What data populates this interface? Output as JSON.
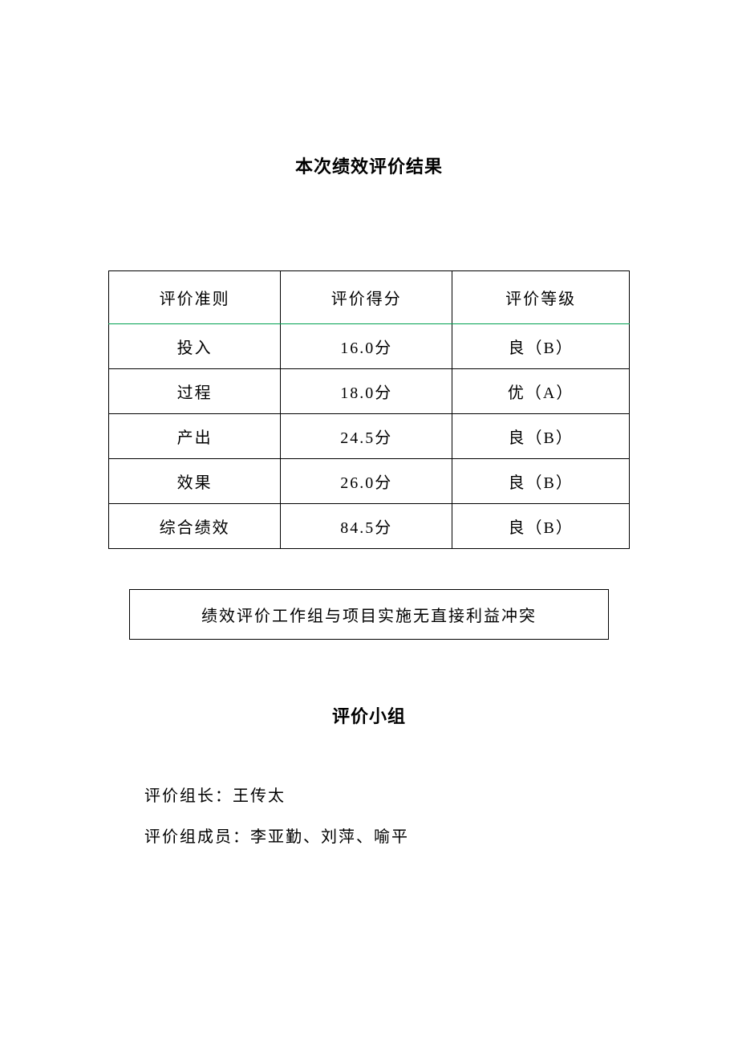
{
  "title": "本次绩效评价结果",
  "table": {
    "headers": {
      "criterion": "评价准则",
      "score": "评价得分",
      "grade": "评价等级"
    },
    "rows": [
      {
        "criterion": "投入",
        "score": "16.0分",
        "grade": "良（B）"
      },
      {
        "criterion": "过程",
        "score": "18.0分",
        "grade": "优（A）"
      },
      {
        "criterion": "产出",
        "score": "24.5分",
        "grade": "良（B）"
      },
      {
        "criterion": "效果",
        "score": "26.0分",
        "grade": "良（B）"
      },
      {
        "criterion": "综合绩效",
        "score": "84.5分",
        "grade": "良（B）"
      }
    ],
    "border_color": "#000000",
    "accent_border_color": "#00a050",
    "font_size": 20
  },
  "statement": "绩效评价工作组与项目实施无直接利益冲突",
  "team": {
    "title": "评价小组",
    "leader_label": "评价组长：",
    "leader_name": "王传太",
    "members_label": "评价组成员：",
    "members_names": "李亚勤、刘萍、喻平"
  },
  "background_color": "#ffffff",
  "text_color": "#000000"
}
